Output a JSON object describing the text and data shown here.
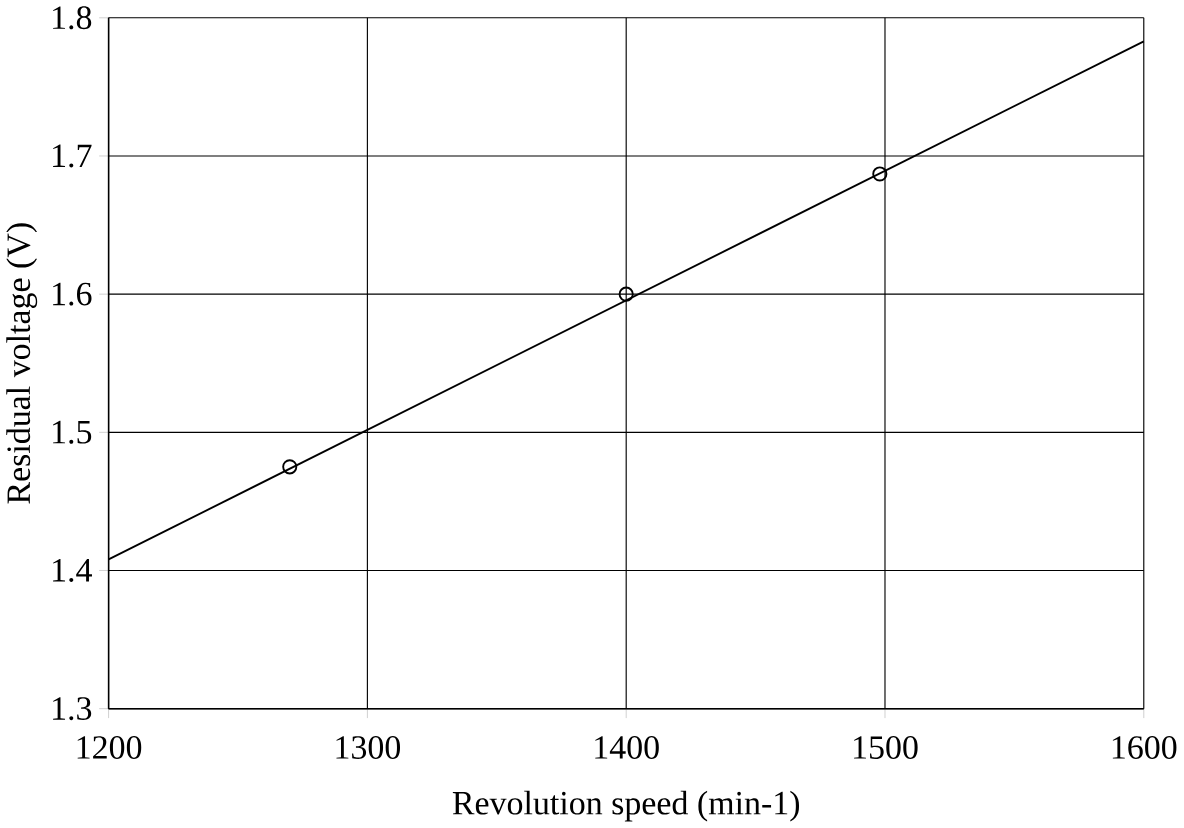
{
  "chart_data": {
    "type": "scatter",
    "xlabel": "Revolution speed (min-1)",
    "ylabel": "Residual voltage (V)",
    "xlim": [
      1200,
      1600
    ],
    "xticks": [
      1200,
      1300,
      1400,
      1500,
      1600
    ],
    "ylim": [
      1.3,
      1.8
    ],
    "yticks": [
      1.3,
      1.4,
      1.5,
      1.6,
      1.7,
      1.8
    ],
    "grid": true,
    "series": [
      {
        "color": "#000000",
        "marker": "circle",
        "x": [
          1270,
          1400,
          1498
        ],
        "values": [
          1.475,
          1.6,
          1.687
        ]
      },
      {
        "type": "line",
        "color": "#000000",
        "marker": "none",
        "line_style": "solid",
        "x": [
          1200,
          1600
        ],
        "values": [
          1.408,
          1.783
        ]
      }
    ]
  }
}
